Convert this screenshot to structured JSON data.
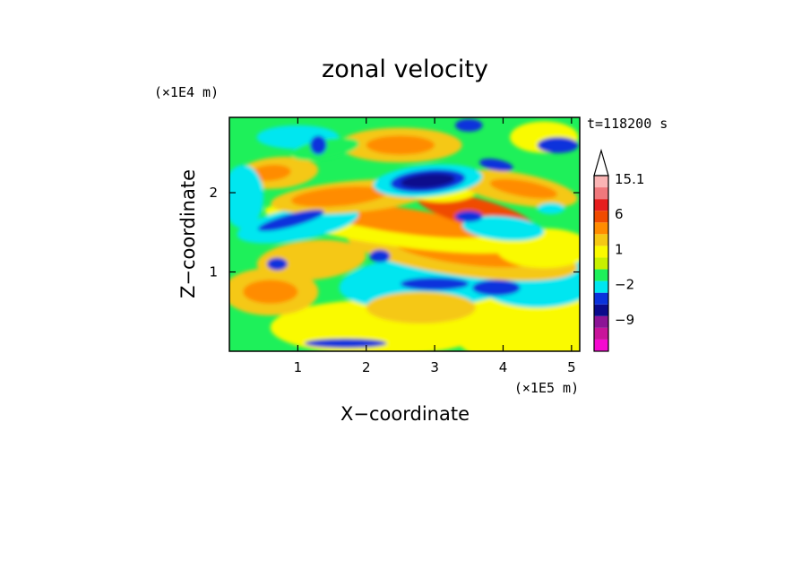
{
  "chart_data": {
    "type": "heatmap",
    "title": "zonal velocity",
    "subtitle": "",
    "xlabel": "X−coordinate",
    "ylabel": "Z−coordinate",
    "x_unit": "(×1E5 m)",
    "y_unit": "(×1E4 m)",
    "time_label": "t=118200 s",
    "xlim": [
      0,
      5.12
    ],
    "ylim": [
      0,
      2.95
    ],
    "x_ticks": [
      {
        "value": 1,
        "label": "1"
      },
      {
        "value": 2,
        "label": "2"
      },
      {
        "value": 3,
        "label": "3"
      },
      {
        "value": 4,
        "label": "4"
      },
      {
        "value": 5,
        "label": "5"
      }
    ],
    "y_ticks": [
      {
        "value": 1,
        "label": "1"
      },
      {
        "value": 2,
        "label": "2"
      }
    ],
    "colorbar": {
      "levels": [
        -15,
        -12,
        -9,
        -6,
        -3,
        -2,
        -1,
        0,
        1,
        2,
        3,
        6,
        9,
        12,
        15.1
      ],
      "colors": [
        "#f50ad0",
        "#c8149a",
        "#8c1496",
        "#0a0a8c",
        "#0a32dc",
        "#00e6f0",
        "#1ef05a",
        "#c8f000",
        "#fafa00",
        "#f5c814",
        "#ff8c00",
        "#f04b00",
        "#e61e1e",
        "#f0787c",
        "#fab4b4"
      ],
      "labels": [
        {
          "value": 15.1,
          "label": "15.1"
        },
        {
          "value": 6,
          "label": "6"
        },
        {
          "value": 1,
          "label": "1"
        },
        {
          "value": -2,
          "label": "−2"
        },
        {
          "value": -9,
          "label": "−9"
        }
      ],
      "extend": "max"
    },
    "grid": false,
    "legend": "colorbar-right"
  }
}
